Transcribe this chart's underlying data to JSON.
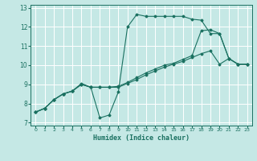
{
  "xlabel": "Humidex (Indice chaleur)",
  "bg_color": "#c5e8e5",
  "grid_color": "#ffffff",
  "line_color": "#1a7060",
  "xlim": [
    -0.5,
    23.5
  ],
  "ylim": [
    6.85,
    13.15
  ],
  "xticks": [
    0,
    1,
    2,
    3,
    4,
    5,
    6,
    7,
    8,
    9,
    10,
    11,
    12,
    13,
    14,
    15,
    16,
    17,
    18,
    19,
    20,
    21,
    22,
    23
  ],
  "yticks": [
    7,
    8,
    9,
    10,
    11,
    12,
    13
  ],
  "line1_x": [
    0,
    1,
    2,
    3,
    4,
    5,
    6,
    7,
    8,
    9,
    10,
    11,
    12,
    13,
    14,
    15,
    16,
    17,
    18,
    19,
    20,
    21,
    22,
    23
  ],
  "line1_y": [
    7.55,
    7.75,
    8.2,
    8.5,
    8.65,
    9.0,
    8.85,
    7.25,
    7.4,
    8.6,
    12.0,
    12.65,
    12.55,
    12.55,
    12.55,
    12.55,
    12.55,
    12.4,
    12.35,
    11.65,
    11.65,
    10.35,
    10.05,
    10.05
  ],
  "line2_x": [
    0,
    1,
    2,
    3,
    4,
    5,
    6,
    7,
    8,
    9,
    10,
    11,
    12,
    13,
    14,
    15,
    16,
    17,
    18,
    19,
    20,
    21,
    22,
    23
  ],
  "line2_y": [
    7.55,
    7.75,
    8.2,
    8.5,
    8.65,
    9.0,
    8.85,
    8.85,
    8.85,
    8.85,
    9.05,
    9.25,
    9.5,
    9.7,
    9.9,
    10.05,
    10.2,
    10.4,
    10.6,
    10.75,
    10.05,
    10.35,
    10.05,
    10.05
  ],
  "line3_x": [
    0,
    1,
    2,
    3,
    4,
    5,
    6,
    7,
    8,
    9,
    10,
    11,
    12,
    13,
    14,
    15,
    16,
    17,
    18,
    19,
    20,
    21,
    22,
    23
  ],
  "line3_y": [
    7.55,
    7.75,
    8.2,
    8.5,
    8.65,
    9.05,
    8.85,
    8.85,
    8.85,
    8.9,
    9.1,
    9.35,
    9.6,
    9.8,
    10.0,
    10.1,
    10.3,
    10.5,
    11.8,
    11.85,
    11.65,
    10.35,
    10.05,
    10.05
  ]
}
